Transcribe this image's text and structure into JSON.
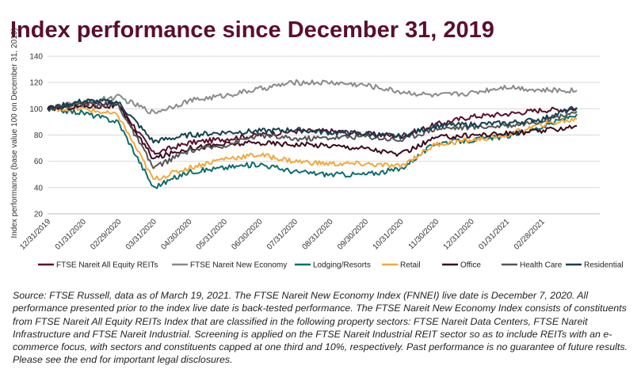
{
  "title": "Index performance since December 31, 2019",
  "note": "Source: FTSE Russell, data as of March 19, 2021. The FTSE Nareit New Economy Index (FNNEI) live date is December 7, 2020. All performance presented prior to the index live date is back-tested performance. The FTSE Nareit New Economy Index consists of constituents from FTSE Nareit All Equity REITs Index that are classified in the following property sectors: FTSE Nareit Data Centers, FTSE Nareit Infrastructure and FTSE Nareit Industrial. Screening is applied on the FTSE Nareit Industrial REIT sector so as to include REITs with an e-commerce focus, with sectors and constituents capped at one third and 10%, respectively. Past performance is no guarantee of future results. Please see the end for important legal disclosures.",
  "chart_data": {
    "type": "line",
    "ylabel": "Index performance (base value 100 on December 31, 2019)",
    "ylim": [
      20,
      140
    ],
    "yticks": [
      20,
      40,
      60,
      80,
      100,
      120,
      140
    ],
    "x": [
      "12/31/2019",
      "01/31/2020",
      "02/29/2020",
      "03/31/2020",
      "04/30/2020",
      "05/31/2020",
      "06/30/2020",
      "07/31/2020",
      "08/31/2020",
      "09/30/2020",
      "10/31/2020",
      "11/30/2020",
      "12/31/2020",
      "01/31/2021",
      "02/28/2021",
      "03/19/2021"
    ],
    "xtick_labels": [
      "12/31/2019",
      "01/31/2020",
      "02/29/2020",
      "03/31/2020",
      "04/30/2020",
      "05/31/2020",
      "06/30/2020",
      "07/31/2020",
      "08/31/2020",
      "09/30/2020",
      "10/31/2020",
      "11/30/2020",
      "12/31/2020",
      "01/31/2021",
      "02/28/2021"
    ],
    "grid": true,
    "legend_position": "bottom",
    "series": [
      {
        "name": "FTSE Nareit All Equity REITs",
        "color": "#5a0f2e",
        "dash": "",
        "values": [
          100,
          105,
          104,
          66,
          74,
          77,
          80,
          83,
          83,
          81,
          79,
          88,
          94,
          96,
          99,
          100
        ]
      },
      {
        "name": "FTSE Nareit New Economy",
        "color": "#8a8a8a",
        "dash": "",
        "values": [
          100,
          105,
          109,
          97,
          106,
          110,
          115,
          120,
          120,
          118,
          113,
          110,
          112,
          117,
          114,
          114
        ]
      },
      {
        "name": "Lodging/Resorts",
        "color": "#0e6e6e",
        "dash": "",
        "values": [
          100,
          97,
          90,
          40,
          52,
          55,
          58,
          52,
          50,
          50,
          54,
          74,
          76,
          79,
          86,
          96
        ]
      },
      {
        "name": "Retail",
        "color": "#f2a93b",
        "dash": "",
        "values": [
          100,
          100,
          95,
          46,
          55,
          62,
          65,
          60,
          58,
          58,
          56,
          73,
          76,
          80,
          88,
          92
        ]
      },
      {
        "name": "Office",
        "color": "#3a0a1f",
        "dash": "",
        "values": [
          100,
          102,
          102,
          62,
          70,
          73,
          74,
          73,
          72,
          70,
          65,
          78,
          80,
          81,
          83,
          87
        ]
      },
      {
        "name": "Health Care",
        "color": "#555555",
        "dash": "",
        "values": [
          100,
          104,
          103,
          55,
          68,
          72,
          80,
          77,
          78,
          79,
          76,
          85,
          86,
          87,
          91,
          98
        ]
      },
      {
        "name": "Residential",
        "color": "#12414e",
        "dash": "",
        "values": [
          100,
          106,
          105,
          75,
          80,
          82,
          83,
          84,
          82,
          81,
          79,
          87,
          88,
          89,
          92,
          101
        ]
      }
    ]
  }
}
